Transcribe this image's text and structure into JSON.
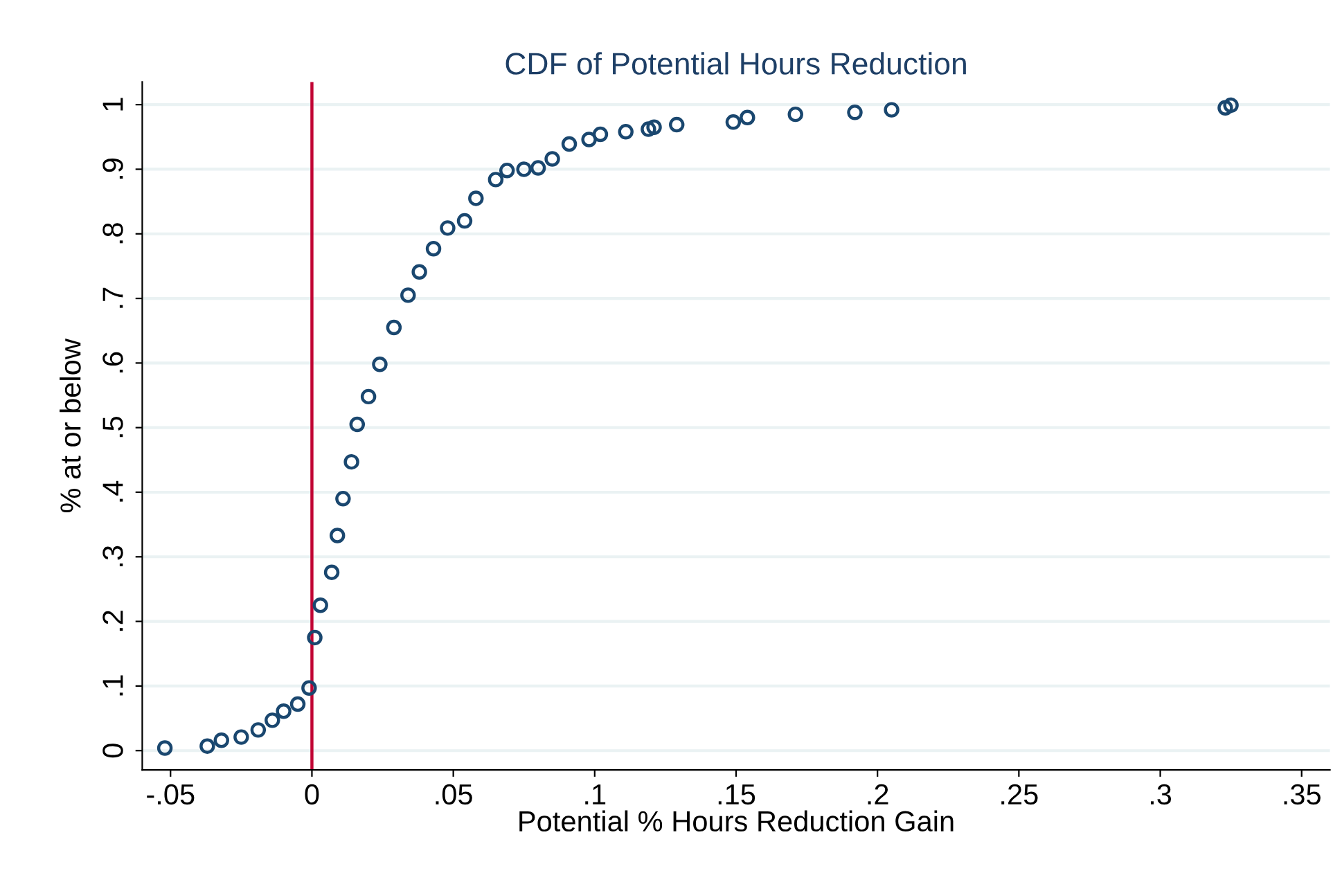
{
  "chart_data": {
    "type": "scatter",
    "title": "CDF of Potential Hours Reduction",
    "xlabel": "Potential % Hours Reduction Gain",
    "ylabel": "% at or below",
    "x": [
      -0.052,
      -0.037,
      -0.032,
      -0.025,
      -0.019,
      -0.014,
      -0.01,
      -0.005,
      -0.001,
      0.001,
      0.003,
      0.007,
      0.009,
      0.011,
      0.014,
      0.016,
      0.02,
      0.024,
      0.029,
      0.034,
      0.038,
      0.043,
      0.048,
      0.054,
      0.058,
      0.065,
      0.069,
      0.075,
      0.08,
      0.085,
      0.091,
      0.098,
      0.102,
      0.111,
      0.119,
      0.121,
      0.129,
      0.149,
      0.154,
      0.171,
      0.192,
      0.205,
      0.323,
      0.325
    ],
    "series": [
      {
        "color": "#1a476f",
        "values": [
          0.004,
          0.007,
          0.016,
          0.021,
          0.032,
          0.047,
          0.061,
          0.072,
          0.097,
          0.175,
          0.225,
          0.276,
          0.333,
          0.39,
          0.447,
          0.505,
          0.548,
          0.598,
          0.655,
          0.705,
          0.741,
          0.777,
          0.809,
          0.82,
          0.855,
          0.884,
          0.898,
          0.9,
          0.902,
          0.916,
          0.939,
          0.946,
          0.954,
          0.958,
          0.962,
          0.965,
          0.969,
          0.973,
          0.98,
          0.985,
          0.988,
          0.992,
          0.995,
          0.999
        ]
      }
    ],
    "xlim": [
      -0.06,
      0.36
    ],
    "xticks": [
      {
        "value": -0.05,
        "label": "-.05"
      },
      0,
      {
        "value": 0.05,
        "label": ".05"
      },
      {
        "value": 0.1,
        "label": ".1"
      },
      {
        "value": 0.15,
        "label": ".15"
      },
      {
        "value": 0.2,
        "label": ".2"
      },
      {
        "value": 0.25,
        "label": ".25"
      },
      {
        "value": 0.3,
        "label": ".3"
      },
      {
        "value": 0.35,
        "label": ".35"
      }
    ],
    "ylim": [
      -0.03,
      1.035
    ],
    "yticks": [
      0,
      {
        "value": 0.1,
        "label": ".1"
      },
      {
        "value": 0.2,
        "label": ".2"
      },
      {
        "value": 0.3,
        "label": ".3"
      },
      {
        "value": 0.4,
        "label": ".4"
      },
      {
        "value": 0.5,
        "label": ".5"
      },
      {
        "value": 0.6,
        "label": ".6"
      },
      {
        "value": 0.7,
        "label": ".7"
      },
      {
        "value": 0.8,
        "label": ".8"
      },
      {
        "value": 0.9,
        "label": ".9"
      },
      1
    ],
    "ref_lines": [
      {
        "axis": "x",
        "value": 0,
        "color": "#c10534"
      }
    ],
    "grid": "y",
    "marker": "circle"
  }
}
